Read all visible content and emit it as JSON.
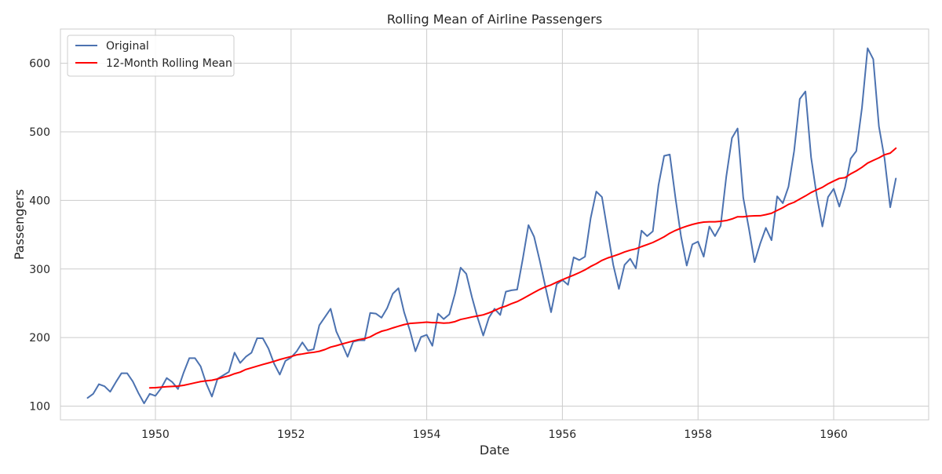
{
  "chart_data": {
    "type": "line",
    "title": "Rolling Mean of Airline Passengers",
    "xlabel": "Date",
    "ylabel": "Passengers",
    "xlim": [
      1948.6,
      1961.4
    ],
    "ylim": [
      80,
      650
    ],
    "x_ticks": [
      1950,
      1952,
      1954,
      1956,
      1958,
      1960
    ],
    "y_ticks": [
      100,
      200,
      300,
      400,
      500,
      600
    ],
    "grid": true,
    "legend_position": "top-left",
    "x_start_year": 1949,
    "series": [
      {
        "name": "Original",
        "color": "#4c72b0",
        "values": [
          112,
          118,
          132,
          129,
          121,
          135,
          148,
          148,
          136,
          119,
          104,
          118,
          115,
          126,
          141,
          135,
          125,
          149,
          170,
          170,
          158,
          133,
          114,
          140,
          145,
          150,
          178,
          163,
          172,
          178,
          199,
          199,
          184,
          162,
          146,
          166,
          171,
          180,
          193,
          181,
          183,
          218,
          230,
          242,
          209,
          191,
          172,
          194,
          196,
          196,
          236,
          235,
          229,
          243,
          264,
          272,
          237,
          211,
          180,
          201,
          204,
          188,
          235,
          227,
          234,
          264,
          302,
          293,
          259,
          229,
          203,
          229,
          242,
          233,
          267,
          269,
          270,
          315,
          364,
          347,
          312,
          274,
          237,
          278,
          284,
          277,
          317,
          313,
          318,
          374,
          413,
          405,
          355,
          306,
          271,
          306,
          315,
          301,
          356,
          348,
          355,
          422,
          465,
          467,
          404,
          347,
          305,
          336,
          340,
          318,
          362,
          348,
          363,
          435,
          491,
          505,
          404,
          359,
          310,
          337,
          360,
          342,
          406,
          396,
          420,
          472,
          548,
          559,
          463,
          407,
          362,
          405,
          417,
          391,
          419,
          461,
          472,
          535,
          622,
          606,
          508,
          461,
          390,
          432
        ]
      },
      {
        "name": "12-Month Rolling Mean",
        "color": "#ff0000",
        "values": [
          null,
          null,
          null,
          null,
          null,
          null,
          null,
          null,
          null,
          null,
          null,
          126.67,
          126.92,
          127.58,
          128.33,
          128.83,
          129.17,
          130.33,
          132.17,
          134.0,
          135.83,
          137.0,
          137.83,
          139.67,
          142.17,
          144.17,
          147.25,
          149.58,
          153.5,
          155.92,
          158.33,
          160.75,
          163.0,
          165.33,
          168.0,
          170.17,
          172.33,
          174.83,
          176.08,
          177.58,
          178.5,
          180.0,
          182.58,
          186.08,
          188.17,
          190.58,
          192.83,
          195.08,
          197.08,
          198.42,
          201.0,
          205.5,
          209.17,
          211.25,
          214.08,
          216.58,
          218.92,
          220.58,
          221.25,
          221.83,
          222.5,
          221.83,
          221.75,
          221.08,
          221.5,
          223.25,
          226.42,
          228.17,
          230.0,
          231.5,
          233.17,
          236.08,
          239.5,
          243.25,
          245.92,
          249.42,
          252.42,
          256.67,
          261.33,
          265.83,
          270.25,
          274.0,
          276.83,
          280.83,
          284.33,
          287.83,
          291.08,
          294.75,
          298.75,
          303.67,
          307.75,
          312.58,
          316.08,
          318.75,
          321.58,
          324.83,
          327.42,
          329.42,
          332.67,
          335.58,
          338.67,
          342.67,
          347.0,
          352.17,
          356.25,
          359.67,
          362.5,
          365.0,
          367.0,
          368.42,
          368.92,
          368.92,
          369.58,
          370.67,
          373.0,
          376.17,
          376.17,
          377.17,
          377.58,
          377.67,
          379.33,
          381.33,
          385.5,
          389.5,
          394.25,
          397.33,
          402.08,
          406.58,
          411.58,
          415.5,
          419.17,
          424.25,
          428.33,
          432.17,
          433.25,
          438.75,
          443.08,
          448.33,
          454.5,
          458.42,
          462.17,
          466.67,
          469.0,
          476.17
        ]
      }
    ]
  }
}
